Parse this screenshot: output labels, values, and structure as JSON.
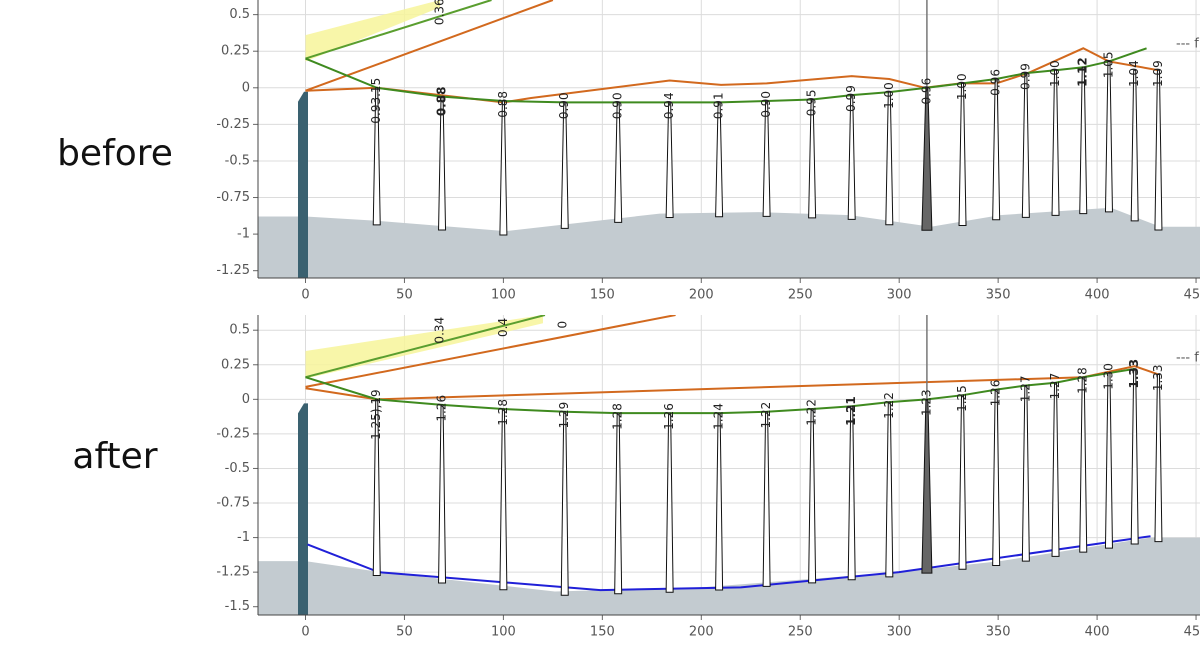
{
  "chart_data": [
    {
      "type": "line",
      "title": "before",
      "xlim": [
        -24,
        452
      ],
      "xticks": [
        0,
        50,
        100,
        150,
        200,
        250,
        300,
        350,
        400,
        450
      ],
      "ylim": [
        -1.3,
        0.6
      ],
      "yticks": [
        0.5,
        0.25,
        0,
        -0.25,
        -0.5,
        -0.75,
        -1,
        -1.25
      ],
      "grid": true,
      "legend_fragment": "--- f",
      "ground": {
        "color": "#c3cbd0",
        "x": [
          -24,
          0,
          37,
          101,
          179,
          229,
          275,
          316,
          351,
          407,
          432,
          452
        ],
        "values": [
          -0.88,
          -0.88,
          -0.91,
          -0.98,
          -0.86,
          -0.85,
          -0.87,
          -0.95,
          -0.87,
          -0.82,
          -0.95,
          -0.95
        ]
      },
      "band": {
        "color": "#f7f59a",
        "x": [
          0,
          68
        ],
        "upper": [
          0.36,
          0.6
        ],
        "lower": [
          0.18,
          0.55
        ]
      },
      "series": [
        {
          "color": "#d2691e",
          "x": [
            0,
            125
          ],
          "values": [
            -0.02,
            0.6
          ]
        },
        {
          "color": "#5a9e2f",
          "x": [
            0,
            94
          ],
          "values": [
            0.2,
            0.6
          ]
        },
        {
          "color": "#d2691e",
          "x": [
            0,
            36,
            100,
            114,
            184,
            210,
            233,
            276,
            295,
            313,
            331,
            349,
            365,
            393,
            406,
            431
          ],
          "values": [
            -0.02,
            0,
            -0.1,
            -0.07,
            0.05,
            0.02,
            0.03,
            0.08,
            0.06,
            0,
            0.03,
            0.03,
            0.1,
            0.27,
            0.18,
            0.12
          ]
        },
        {
          "color": "#3f8a1f",
          "x": [
            0,
            36,
            69,
            100,
            131,
            158,
            184,
            209,
            233,
            256,
            276,
            295,
            314,
            332,
            349,
            364,
            379,
            393,
            406,
            425
          ],
          "values": [
            0.2,
            0,
            -0.06,
            -0.09,
            -0.1,
            -0.1,
            -0.1,
            -0.1,
            -0.09,
            -0.08,
            -0.05,
            -0.03,
            0,
            0.03,
            0.06,
            0.1,
            0.12,
            0.14,
            0.18,
            0.27
          ]
        }
      ],
      "poles": {
        "x": [
          36,
          69,
          100,
          131,
          158,
          184,
          209,
          233,
          256,
          276,
          295,
          314,
          332,
          349,
          364,
          379,
          393,
          406,
          419,
          431
        ],
        "top": [
          0,
          -0.06,
          -0.09,
          -0.1,
          -0.1,
          -0.1,
          -0.1,
          -0.09,
          -0.08,
          -0.05,
          -0.03,
          0,
          0.03,
          0.06,
          0.1,
          0.12,
          0.14,
          0.18,
          0.12,
          0.12
        ],
        "labels": [
          "0.93.15",
          "0.88",
          "0.88",
          "0.90",
          "0.90",
          "0.94",
          "0.91",
          "0.90",
          "0.95",
          "0.99",
          "1.00",
          "0.96",
          "1.00",
          "0.96",
          "0.99",
          "1.00",
          "1.12",
          "1.05",
          "1.04",
          "1.09"
        ],
        "bold_labels": [
          1,
          16
        ],
        "highlight": 11
      },
      "annotations": [
        {
          "text": "0.36",
          "x": 68,
          "y": 0.52
        }
      ]
    },
    {
      "type": "line",
      "title": "after",
      "xlim": [
        -24,
        452
      ],
      "xticks": [
        0,
        50,
        100,
        150,
        200,
        250,
        300,
        350,
        400,
        450
      ],
      "ylim": [
        -1.56,
        0.61
      ],
      "yticks": [
        0.5,
        0.25,
        0,
        -0.25,
        -0.5,
        -0.75,
        -1,
        -1.25,
        -1.5
      ],
      "grid": true,
      "legend_fragment": "--- f",
      "ground": {
        "color": "#c3cbd0",
        "x": [
          -24,
          0,
          38,
          126,
          200,
          300,
          351,
          427,
          452
        ],
        "values": [
          -1.17,
          -1.17,
          -1.25,
          -1.39,
          -1.36,
          -1.25,
          -1.17,
          -1.0,
          -1.0
        ]
      },
      "band": {
        "color": "#f7f59a",
        "x": [
          0,
          120
        ],
        "upper": [
          0.35,
          0.61
        ],
        "lower": [
          0.15,
          0.55
        ]
      },
      "series": [
        {
          "color": "#d2691e",
          "x": [
            0,
            187
          ],
          "values": [
            0.09,
            0.61
          ]
        },
        {
          "color": "#5a9e2f",
          "x": [
            0,
            121
          ],
          "values": [
            0.16,
            0.61
          ]
        },
        {
          "color": "#d2691e",
          "x": [
            0,
            36,
            393,
            419,
            431
          ],
          "values": [
            0.08,
            0,
            0.16,
            0.24,
            0.18
          ]
        },
        {
          "color": "#3f8a1f",
          "x": [
            0,
            36,
            69,
            100,
            131,
            158,
            184,
            209,
            233,
            256,
            276,
            295,
            314,
            332,
            349,
            364,
            379,
            393,
            406,
            419
          ],
          "values": [
            0.16,
            0,
            -0.04,
            -0.07,
            -0.09,
            -0.1,
            -0.1,
            -0.1,
            -0.09,
            -0.07,
            -0.05,
            -0.02,
            0,
            0.03,
            0.07,
            0.1,
            0.12,
            0.16,
            0.19,
            0.22
          ]
        },
        {
          "color": "#2020d8",
          "x": [
            1,
            37,
            149,
            220,
            300,
            427
          ],
          "values": [
            -1.05,
            -1.25,
            -1.38,
            -1.36,
            -1.25,
            -0.99
          ]
        }
      ],
      "poles": {
        "x": [
          36,
          69,
          100,
          131,
          158,
          184,
          209,
          233,
          256,
          276,
          295,
          314,
          332,
          349,
          364,
          379,
          393,
          406,
          419,
          431
        ],
        "top": [
          0,
          -0.04,
          -0.07,
          -0.09,
          -0.1,
          -0.1,
          -0.1,
          -0.09,
          -0.07,
          -0.05,
          -0.02,
          0,
          0.03,
          0.07,
          0.1,
          0.12,
          0.16,
          0.19,
          0.22,
          0.18
        ],
        "labels": [
          "1.25),19",
          "1.26",
          "1.28",
          "1.29",
          "1.28",
          "1.26",
          "1.24",
          "1.22",
          "1.22",
          "1.21",
          "1.22",
          "1.23",
          "1.25",
          "1.26",
          "1.27",
          "1.27",
          "1.28",
          "1.30",
          "1.33",
          "1.33"
        ],
        "bold_labels": [
          9,
          18
        ],
        "highlight": 11
      },
      "annotations": [
        {
          "text": "0.34",
          "x": 68,
          "y": 0.5
        },
        {
          "text": "0.4",
          "x": 100,
          "y": 0.52
        },
        {
          "text": "0",
          "x": 130,
          "y": 0.54
        }
      ]
    }
  ]
}
